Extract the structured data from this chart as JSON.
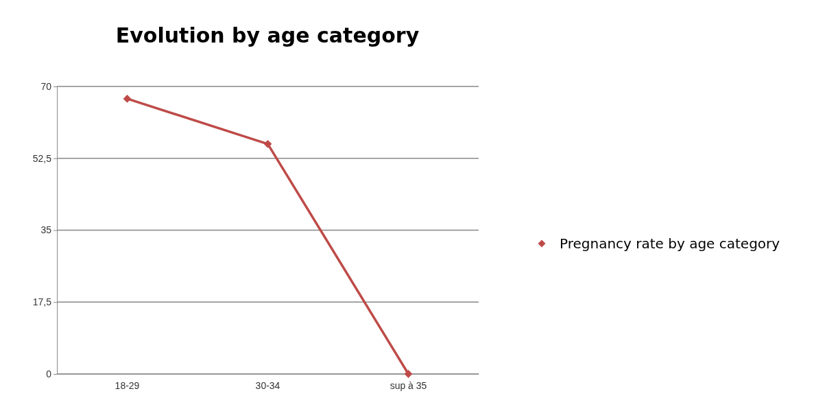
{
  "chart_data": {
    "type": "line",
    "title": "Evolution by age category",
    "categories": [
      "18-29",
      "30-34",
      "sup à 35"
    ],
    "series": [
      {
        "name": "Pregnancy rate by age category",
        "color": "#be4b48",
        "values": [
          67,
          56,
          0
        ]
      }
    ],
    "ylim": [
      0,
      70
    ],
    "yticks": [
      0,
      {
        "value": 17.5,
        "label": "17,5"
      },
      35,
      {
        "value": 52.5,
        "label": "52,5"
      },
      70
    ],
    "grid": "y",
    "legend": "right",
    "marker": "diamond",
    "line_style": "solid"
  }
}
